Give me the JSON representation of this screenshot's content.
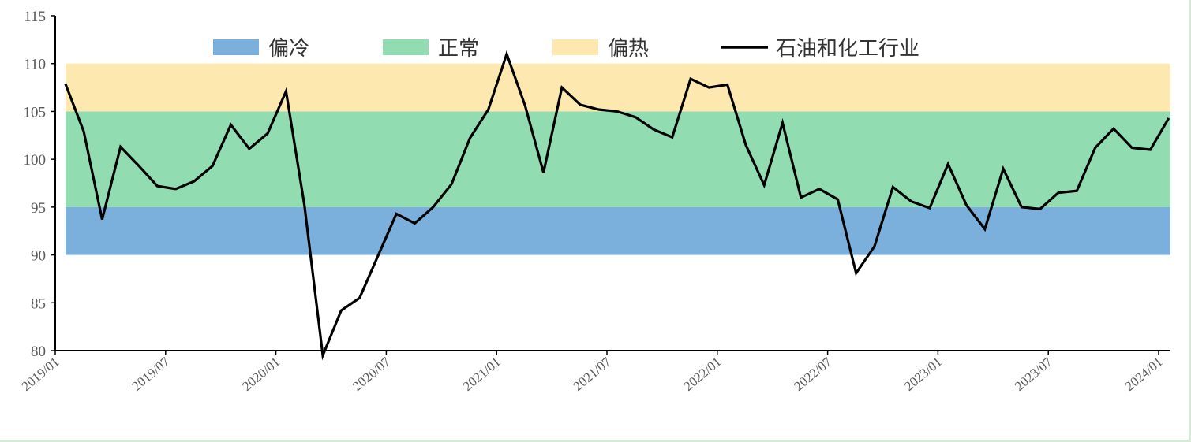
{
  "chart_data": {
    "type": "line",
    "title": "",
    "xlabel": "",
    "ylabel": "",
    "ylim": [
      80,
      115
    ],
    "yticks": [
      80,
      85,
      90,
      95,
      100,
      105,
      110,
      115
    ],
    "xtick_labels": [
      "2019/01",
      "2019/07",
      "2020/01",
      "2020/07",
      "2021/01",
      "2021/07",
      "2022/01",
      "2022/07",
      "2023/01",
      "2023/07",
      "2024/01"
    ],
    "x_start": "2019/02",
    "bands": [
      {
        "name": "偏冷",
        "from": 90,
        "to": 95,
        "color": "#7bafdc"
      },
      {
        "name": "正常",
        "from": 95,
        "to": 105,
        "color": "#92dcb2"
      },
      {
        "name": "偏热",
        "from": 105,
        "to": 110,
        "color": "#fde9b0"
      }
    ],
    "series": [
      {
        "name": "石油和化工行业",
        "color": "#000000",
        "values": [
          107.9,
          102.9,
          93.7,
          101.3,
          99.3,
          97.2,
          96.9,
          97.7,
          99.3,
          103.6,
          101.1,
          102.7,
          107.1,
          95.2,
          79.5,
          84.2,
          85.5,
          89.9,
          94.3,
          93.3,
          95.0,
          97.4,
          102.2,
          105.2,
          111.0,
          105.6,
          98.6,
          107.5,
          105.7,
          105.2,
          105.0,
          104.4,
          103.1,
          102.3,
          108.4,
          107.5,
          107.8,
          101.5,
          97.3,
          103.8,
          96.0,
          96.9,
          95.8,
          88.1,
          90.9,
          97.1,
          95.6,
          94.9,
          99.5,
          95.2,
          92.7,
          99.0,
          95.0,
          94.8,
          96.5,
          96.7,
          101.2,
          103.2,
          101.2,
          101.0,
          104.3
        ]
      }
    ],
    "legend": {
      "position": "top"
    }
  }
}
